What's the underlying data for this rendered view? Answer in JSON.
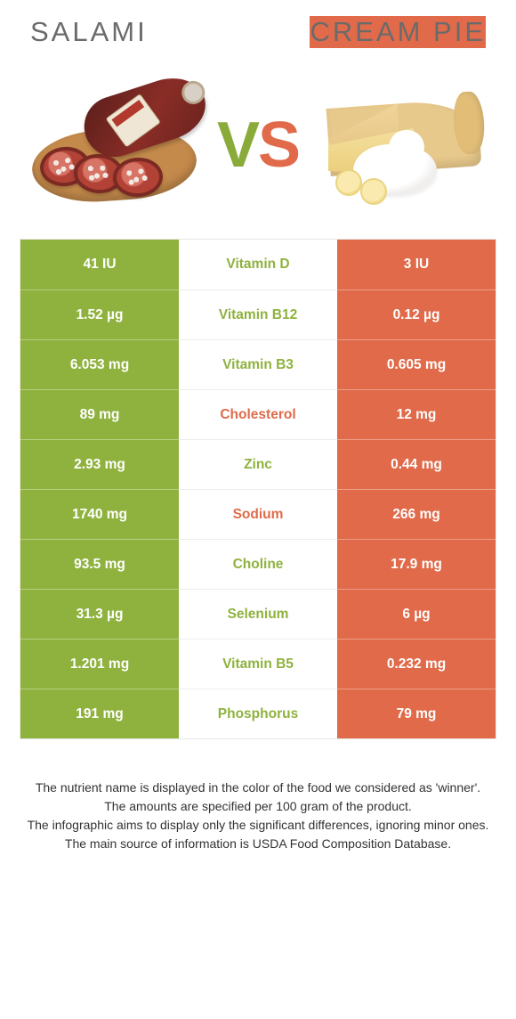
{
  "colors": {
    "green": "#8fb23e",
    "orange": "#e06a49",
    "title": "#6b6b6b"
  },
  "header": {
    "left_title": "Salami",
    "right_title": "Cream Pie"
  },
  "vs": {
    "v": "V",
    "s": "S"
  },
  "table": {
    "rows": [
      {
        "nutrient": "Vitamin D",
        "left": "41 IU",
        "right": "3 IU",
        "winner": "left"
      },
      {
        "nutrient": "Vitamin B12",
        "left": "1.52 µg",
        "right": "0.12 µg",
        "winner": "left"
      },
      {
        "nutrient": "Vitamin B3",
        "left": "6.053 mg",
        "right": "0.605 mg",
        "winner": "left"
      },
      {
        "nutrient": "Cholesterol",
        "left": "89 mg",
        "right": "12 mg",
        "winner": "right"
      },
      {
        "nutrient": "Zinc",
        "left": "2.93 mg",
        "right": "0.44 mg",
        "winner": "left"
      },
      {
        "nutrient": "Sodium",
        "left": "1740 mg",
        "right": "266 mg",
        "winner": "right"
      },
      {
        "nutrient": "Choline",
        "left": "93.5 mg",
        "right": "17.9 mg",
        "winner": "left"
      },
      {
        "nutrient": "Selenium",
        "left": "31.3 µg",
        "right": "6 µg",
        "winner": "left"
      },
      {
        "nutrient": "Vitamin B5",
        "left": "1.201 mg",
        "right": "0.232 mg",
        "winner": "left"
      },
      {
        "nutrient": "Phosphorus",
        "left": "191 mg",
        "right": "79 mg",
        "winner": "left"
      }
    ]
  },
  "notes": {
    "l1": "The nutrient name is displayed in the color of the food we considered as 'winner'.",
    "l2": "The amounts are specified per 100 gram of the product.",
    "l3": "The infographic aims to display only the significant differences, ignoring minor ones.",
    "l4": "The main source of information is USDA Food Composition Database."
  }
}
